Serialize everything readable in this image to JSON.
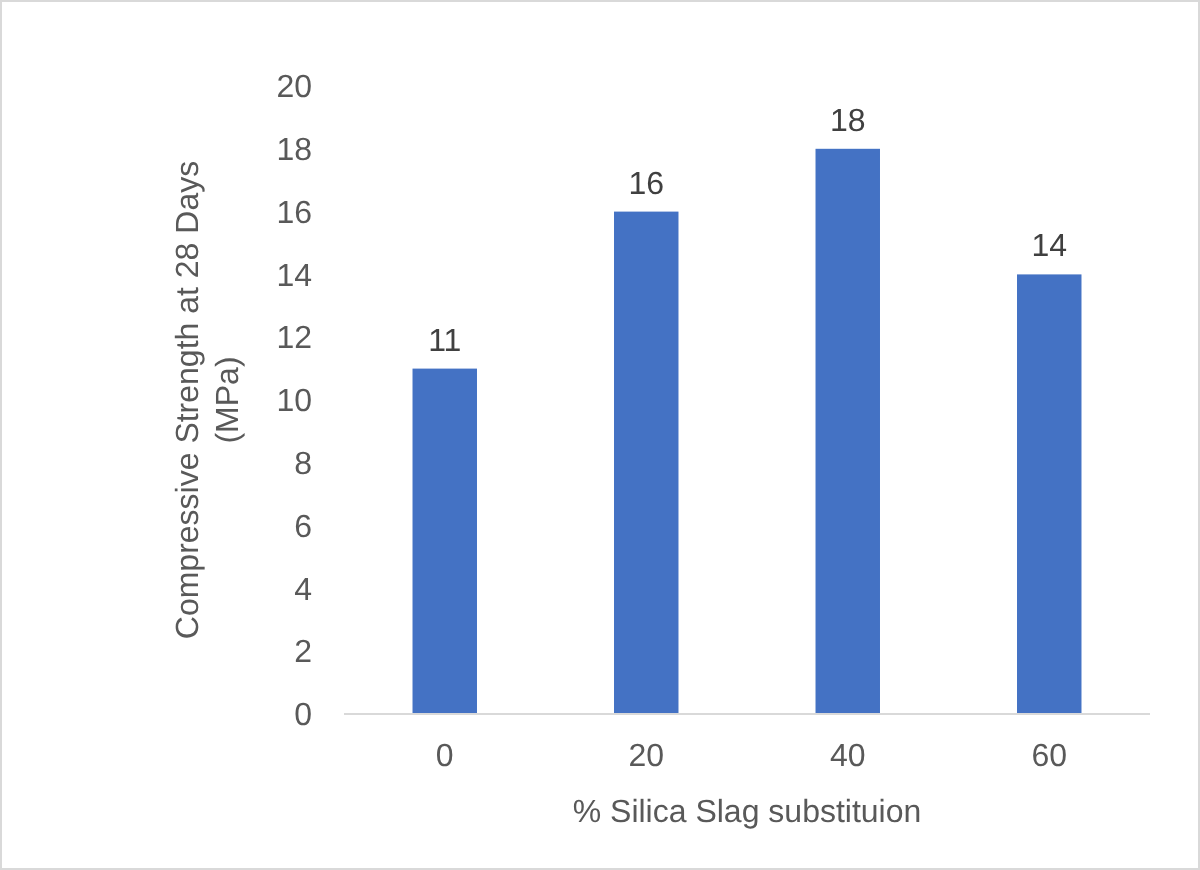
{
  "chart_data": {
    "type": "bar",
    "xlabel": "% Silica Slag substituion",
    "ylabel": "Compressive Strength at 28 Days (MPa)",
    "categories": [
      "0",
      "20",
      "40",
      "60"
    ],
    "values": [
      11,
      16,
      18,
      14
    ],
    "color": "#4472c4",
    "ylim": [
      0,
      20
    ],
    "yticks": [
      0,
      2,
      4,
      6,
      8,
      10,
      12,
      14,
      16,
      18,
      20
    ],
    "grid": false,
    "data_labels": true
  }
}
